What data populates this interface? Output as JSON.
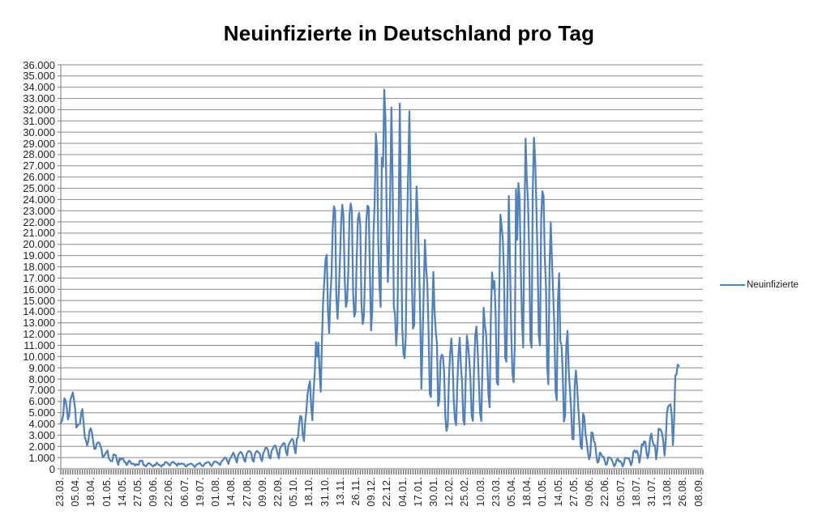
{
  "chart_data": {
    "type": "line",
    "title": "Neuinfizierte in Deutschland pro Tag",
    "legend": "Neuinfizierte",
    "legend_position": "right",
    "grid": true,
    "ylim": [
      0,
      36000
    ],
    "ytick_step": 1000,
    "ytick_labels": [
      "36.000",
      "35.000",
      "34.000",
      "33.000",
      "32.000",
      "31.000",
      "30.000",
      "29.000",
      "28.000",
      "27.000",
      "26.000",
      "25.000",
      "24.000",
      "23.000",
      "22.000",
      "21.000",
      "20.000",
      "19.000",
      "18.000",
      "17.000",
      "16.000",
      "15.000",
      "14.000",
      "13.000",
      "12.000",
      "11.000",
      "10.000",
      "9.000",
      "8.000",
      "7.000",
      "6.000",
      "5.000",
      "4.000",
      "3.000",
      "2.000",
      "1.000",
      "0"
    ],
    "x_tick_labels": [
      "23.03.",
      "05.04.",
      "18.04.",
      "01.05.",
      "14.05.",
      "27.05.",
      "09.06.",
      "22.06.",
      "06.07.",
      "19.07.",
      "01.08.",
      "14.08.",
      "27.08.",
      "09.09.",
      "22.09.",
      "05.10.",
      "18.10.",
      "31.10.",
      "13.11.",
      "26.11.",
      "09.12.",
      "22.12.",
      "04.01.",
      "17.01.",
      "30.01.",
      "12.02.",
      "25.02.",
      "10.03.",
      "23.03.",
      "05.04.",
      "18.04.",
      "01.05.",
      "14.05.",
      "27.05.",
      "09.06.",
      "22.06.",
      "05.07.",
      "18.07.",
      "31.07.",
      "13.08.",
      "26.08.",
      "08.09."
    ],
    "x_tick_interval_points": 13,
    "x_axis_slots": 537,
    "colors": {
      "line": "#4F81BD",
      "gridline": "#8C8C8C",
      "axis": "#8C8C8C",
      "tick_comb": "#6E6E6E",
      "tick_text": "#232323",
      "title": "#000000"
    },
    "series": [
      {
        "name": "Neuinfizierte",
        "values": [
          4062,
          4289,
          4764,
          6294,
          6082,
          5453,
          4400,
          4752,
          6156,
          6447,
          6813,
          6174,
          5290,
          3677,
          3834,
          3991,
          4003,
          4974,
          5323,
          4133,
          2821,
          2537,
          2082,
          2486,
          3380,
          3609,
          3228,
          2458,
          1775,
          1785,
          2237,
          2352,
          2337,
          2055,
          1737,
          1018,
          1144,
          1304,
          1478,
          1639,
          945,
          793,
          679,
          685,
          1284,
          1251,
          1209,
          667,
          357,
          933,
          798,
          933,
          913,
          620,
          583,
          342,
          513,
          745,
          638,
          431,
          473,
          426,
          289,
          432,
          353,
          362,
          741,
          679,
          738,
          333,
          333,
          213,
          343,
          507,
          498,
          407,
          301,
          214,
          350,
          318,
          555,
          428,
          348,
          301,
          192,
          378,
          345,
          580,
          601,
          537,
          389,
          279,
          503,
          587,
          630,
          489,
          445,
          256,
          498,
          400,
          451,
          466,
          446,
          410,
          239,
          219,
          390,
          397,
          442,
          462,
          378,
          248,
          159,
          351,
          412,
          448,
          534,
          383,
          249,
          249,
          454,
          502,
          569,
          605,
          557,
          340,
          239,
          454,
          632,
          648,
          602,
          563,
          436,
          340,
          639,
          741,
          871,
          1014,
          955,
          702,
          436,
          871,
          1008,
          1226,
          1449,
          1204,
          884,
          561,
          1197,
          1390,
          1510,
          1427,
          1183,
          782,
          633,
          1278,
          1500,
          1597,
          1549,
          1396,
          785,
          633,
          1311,
          1499,
          1597,
          1453,
          1378,
          924,
          679,
          1407,
          1596,
          1892,
          1878,
          1631,
          1009,
          927,
          1597,
          1798,
          2004,
          2089,
          1797,
          1345,
          922,
          1821,
          1998,
          2143,
          2297,
          2246,
          1499,
          1204,
          2089,
          2297,
          2503,
          2673,
          2563,
          1798,
          1382,
          2639,
          2828,
          4058,
          4721,
          4619,
          3051,
          2467,
          4122,
          5132,
          6638,
          7334,
          7830,
          5587,
          4325,
          6868,
          8523,
          11287,
          9993,
          11242,
          8685,
          6868,
          11409,
          14964,
          16774,
          18681,
          19059,
          14177,
          12097,
          15352,
          17214,
          21506,
          23399,
          23000,
          15332,
          13363,
          15513,
          18487,
          21866,
          23542,
          22461,
          16947,
          14419,
          14964,
          17561,
          22609,
          23648,
          22964,
          15741,
          13554,
          14000,
          18633,
          22268,
          22806,
          21695,
          14611,
          12900,
          13604,
          17270,
          22046,
          23449,
          23318,
          17767,
          12332,
          14054,
          20815,
          23679,
          29875,
          28438,
          20200,
          16362,
          14432,
          27728,
          26923,
          33777,
          31300,
          22771,
          16643,
          19528,
          24740,
          32195,
          25533,
          14455,
          13755,
          10976,
          12892,
          22459,
          32552,
          22924,
          12690,
          10315,
          9847,
          11897,
          21237,
          26391,
          31849,
          24694,
          16946,
          12497,
          12802,
          19600,
          25164,
          22368,
          18678,
          13882,
          7141,
          11369,
          15974,
          20398,
          17862,
          16417,
          12257,
          6729,
          6412,
          13202,
          17553,
          14022,
          12321,
          11192,
          5608,
          6114,
          9705,
          10170,
          10030,
          8616,
          4535,
          3379,
          3856,
          8072,
          10237,
          11610,
          9860,
          6114,
          4426,
          3883,
          7556,
          10207,
          11690,
          9164,
          7676,
          4369,
          3943,
          8007,
          11869,
          11000,
          9762,
          7890,
          4732,
          4271,
          9019,
          11912,
          12674,
          10580,
          7709,
          5011,
          4252,
          9146,
          14356,
          12834,
          12027,
          9557,
          6604,
          5480,
          13435,
          17504,
          16033,
          16741,
          13733,
          7709,
          7485,
          15813,
          22657,
          21573,
          20472,
          17176,
          9872,
          9549,
          17051,
          24300,
          18129,
          12196,
          8497,
          7709,
          10976,
          24884,
          20407,
          25464,
          24097,
          17855,
          13245,
          10810,
          21693,
          29426,
          25831,
          23804,
          19185,
          11437,
          10810,
          24884,
          29518,
          27543,
          23392,
          18773,
          11907,
          10976,
          22231,
          24736,
          24329,
          18935,
          16290,
          9160,
          7534,
          18034,
          21953,
          18485,
          15685,
          12656,
          6922,
          6125,
          14909,
          17419,
          11336,
          11040,
          8500,
          4209,
          4740,
          11040,
          12298,
          8769,
          7082,
          5412,
          2682,
          2626,
          7380,
          8769,
          7380,
          5426,
          3852,
          1978,
          1785,
          4917,
          4640,
          3165,
          2440,
          1489,
          847,
          1204,
          3254,
          3187,
          2440,
          2294,
          1240,
          549,
          652,
          1455,
          1330,
          1108,
          1076,
          745,
          346,
          455,
          1016,
          1008,
          970,
          774,
          538,
          219,
          404,
          808,
          892,
          649,
          687,
          559,
          212,
          440,
          985,
          970,
          949,
          952,
          745,
          324,
          646,
          1548,
          1642,
          1456,
          1608,
          1292,
          546,
          1183,
          2203,
          2089,
          2454,
          2400,
          1387,
          958,
          1545,
          2768,
          3142,
          2454,
          2097,
          2097,
          847,
          1766,
          3571,
          3539,
          3448,
          3127,
          2400,
          1183,
          2480,
          4996,
          5578,
          5644,
          5754,
          4728,
          2126,
          4271,
          8324,
          8400,
          9280,
          9162
        ]
      }
    ]
  }
}
